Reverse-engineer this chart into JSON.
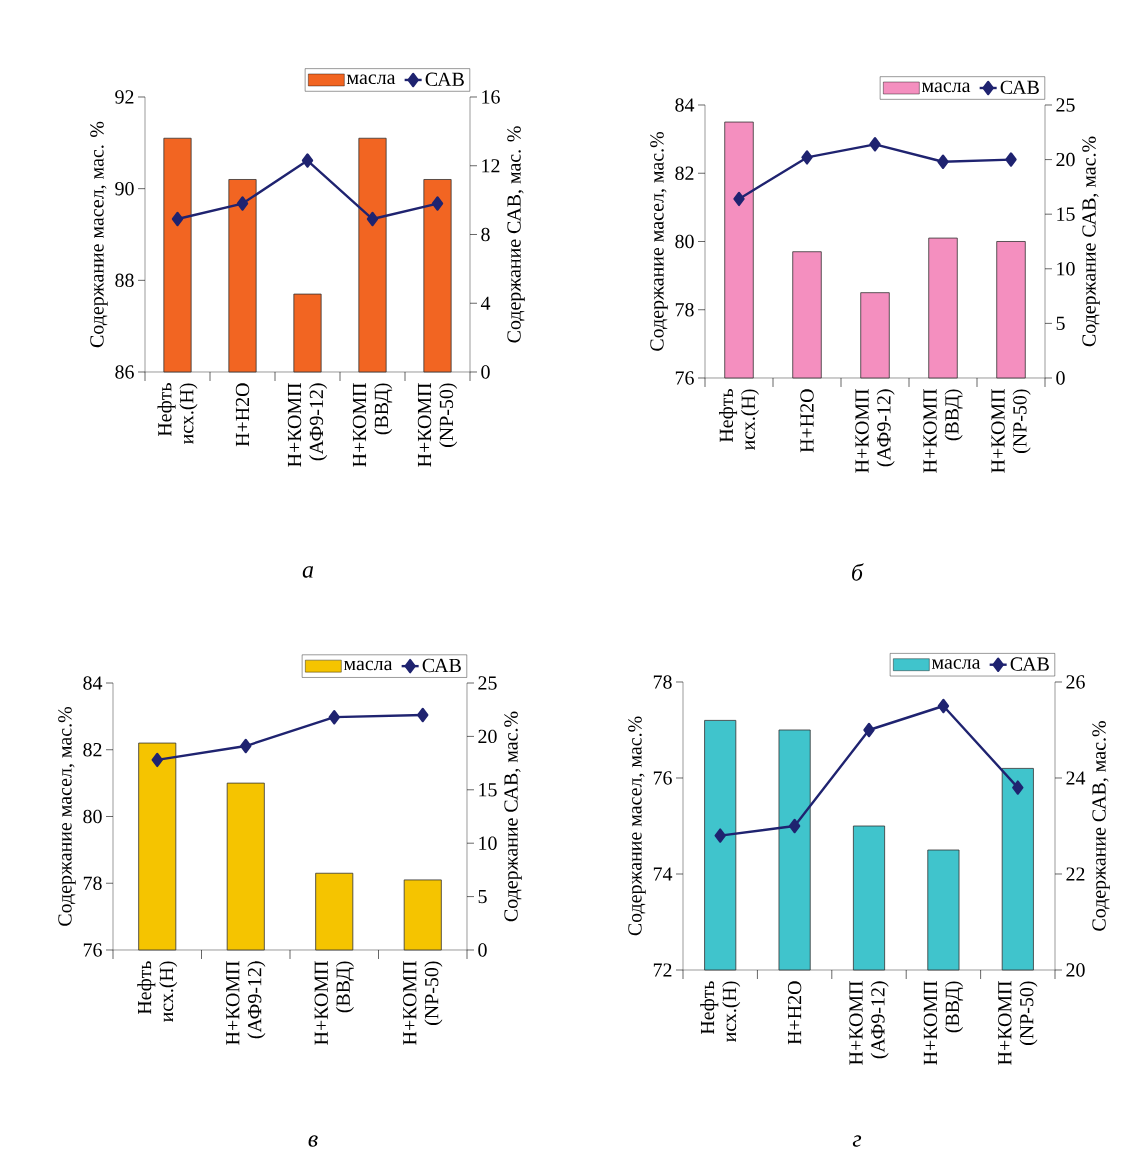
{
  "chart_data": [
    {
      "type": "bar",
      "title": "а",
      "ylabel": "Содержание масел, мас. %",
      "y2label": "Содержание САВ, мас. %",
      "categories": [
        "Нефть исх.(Н)",
        "Н+Н2О",
        "Н+КОМП (АФ9-12)",
        "Н+КОМП (ВВД)",
        "Н+КОМП (NP-50)"
      ],
      "series": [
        {
          "name": "масла",
          "color": "#f26522",
          "values": [
            91.1,
            90.2,
            87.7,
            91.1,
            90.2
          ]
        },
        {
          "name": "САВ",
          "type": "line",
          "axis": "y2",
          "color": "#1f2370",
          "values": [
            8.9,
            9.8,
            12.3,
            8.9,
            9.8
          ]
        }
      ],
      "ylim": [
        86,
        92
      ],
      "yticks": [
        86,
        88,
        90,
        92
      ],
      "y2lim": [
        0,
        16
      ],
      "y2ticks": [
        0,
        4,
        8,
        12,
        16
      ],
      "marker": "diamond",
      "legend": "top right"
    },
    {
      "type": "bar",
      "title": "б",
      "ylabel": "Содержание масел, мас.%",
      "y2label": "Содержание САВ, мас.%",
      "categories": [
        "Нефть исх.(Н)",
        "Н+Н2О",
        "Н+КОМП (АФ9-12)",
        "Н+КОМП (ВВД)",
        "Н+КОМП (NP-50)"
      ],
      "series": [
        {
          "name": "масла",
          "color": "#f48fbf",
          "values": [
            83.5,
            79.7,
            78.5,
            80.1,
            80.0
          ]
        },
        {
          "name": "САВ",
          "type": "line",
          "axis": "y2",
          "color": "#1f2370",
          "values": [
            16.4,
            20.2,
            21.4,
            19.8,
            20.0
          ]
        }
      ],
      "ylim": [
        76,
        84
      ],
      "yticks": [
        76,
        78,
        80,
        82,
        84
      ],
      "y2lim": [
        0,
        25
      ],
      "y2ticks": [
        0,
        5,
        10,
        15,
        20,
        25
      ],
      "marker": "diamond",
      "legend": "top right"
    },
    {
      "type": "bar",
      "title": "в",
      "ylabel": "Содержание масел, мас.%",
      "y2label": "Содержание САВ, мас.%",
      "categories": [
        "Нефть исх.(Н)",
        "Н+КОМП (АФ9-12)",
        "Н+КОМП (ВВД)",
        "Н+КОМП (NP-50)"
      ],
      "series": [
        {
          "name": "масла",
          "color": "#f5c400",
          "values": [
            82.2,
            81.0,
            78.3,
            78.1
          ]
        },
        {
          "name": "САВ",
          "type": "line",
          "axis": "y2",
          "color": "#1f2370",
          "values": [
            17.8,
            19.1,
            21.8,
            22.0
          ]
        }
      ],
      "ylim": [
        76,
        84
      ],
      "yticks": [
        76,
        78,
        80,
        82,
        84
      ],
      "y2lim": [
        0,
        25
      ],
      "y2ticks": [
        0,
        5,
        10,
        15,
        20,
        25
      ],
      "marker": "diamond",
      "legend": "top right"
    },
    {
      "type": "bar",
      "title": "г",
      "ylabel": "Содержание масел, мас.%",
      "y2label": "Содержание САВ, мас.%",
      "categories": [
        "Нефть исх.(Н)",
        "Н+Н2О",
        "Н+КОМП (АФ9-12)",
        "Н+КОМП (ВВД)",
        "Н+КОМП (NP-50)"
      ],
      "series": [
        {
          "name": "масла",
          "color": "#40c4cc",
          "values": [
            77.2,
            77.0,
            75.0,
            74.5,
            76.2
          ]
        },
        {
          "name": "САВ",
          "type": "line",
          "axis": "y2",
          "color": "#1f2370",
          "values": [
            22.8,
            23.0,
            25.0,
            25.5,
            23.8
          ]
        }
      ],
      "ylim": [
        72,
        78
      ],
      "yticks": [
        72,
        74,
        76,
        78
      ],
      "y2lim": [
        20,
        26
      ],
      "y2ticks": [
        20,
        22,
        24,
        26
      ],
      "marker": "diamond",
      "legend": "top right"
    }
  ]
}
